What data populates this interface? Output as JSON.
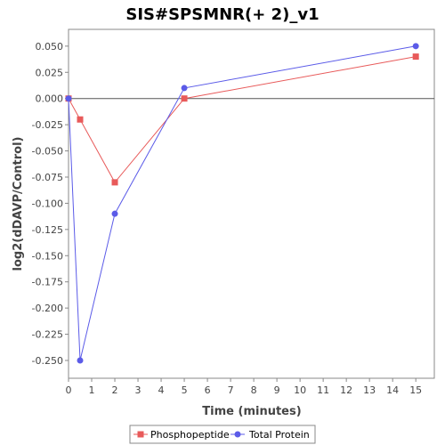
{
  "chart_data": {
    "type": "line",
    "title": "SIS#SPSMNR(+ 2)_v1",
    "xlabel": "Time (minutes)",
    "ylabel": "log2(dDAVP/Control)",
    "xlim": [
      0,
      15.8
    ],
    "ylim": [
      -0.267,
      0.066
    ],
    "x_ticks": [
      0,
      1,
      2,
      3,
      4,
      5,
      6,
      7,
      8,
      9,
      10,
      11,
      12,
      13,
      14,
      15
    ],
    "y_ticks": [
      0.05,
      0.025,
      0.0,
      -0.025,
      -0.05,
      -0.075,
      -0.1,
      -0.125,
      -0.15,
      -0.175,
      -0.2,
      -0.225,
      -0.25
    ],
    "y_tick_labels": [
      "0.050",
      "0.025",
      "0.000",
      "-0.025",
      "-0.050",
      "-0.075",
      "-0.100",
      "-0.125",
      "-0.150",
      "-0.175",
      "-0.200",
      "-0.225",
      "-0.250"
    ],
    "grid": false,
    "zero_line": true,
    "legend_position": "bottom",
    "series": [
      {
        "name": "Phosphopeptide",
        "color": "#e85a5a",
        "marker": "square",
        "x": [
          0,
          0.5,
          2,
          5,
          15
        ],
        "y": [
          0.0,
          -0.02,
          -0.08,
          0.0,
          0.04
        ]
      },
      {
        "name": "Total Protein",
        "color": "#5b5be8",
        "marker": "circle",
        "x": [
          0,
          0.5,
          2,
          5,
          15
        ],
        "y": [
          0.0,
          -0.25,
          -0.11,
          0.01,
          0.05
        ]
      }
    ]
  }
}
